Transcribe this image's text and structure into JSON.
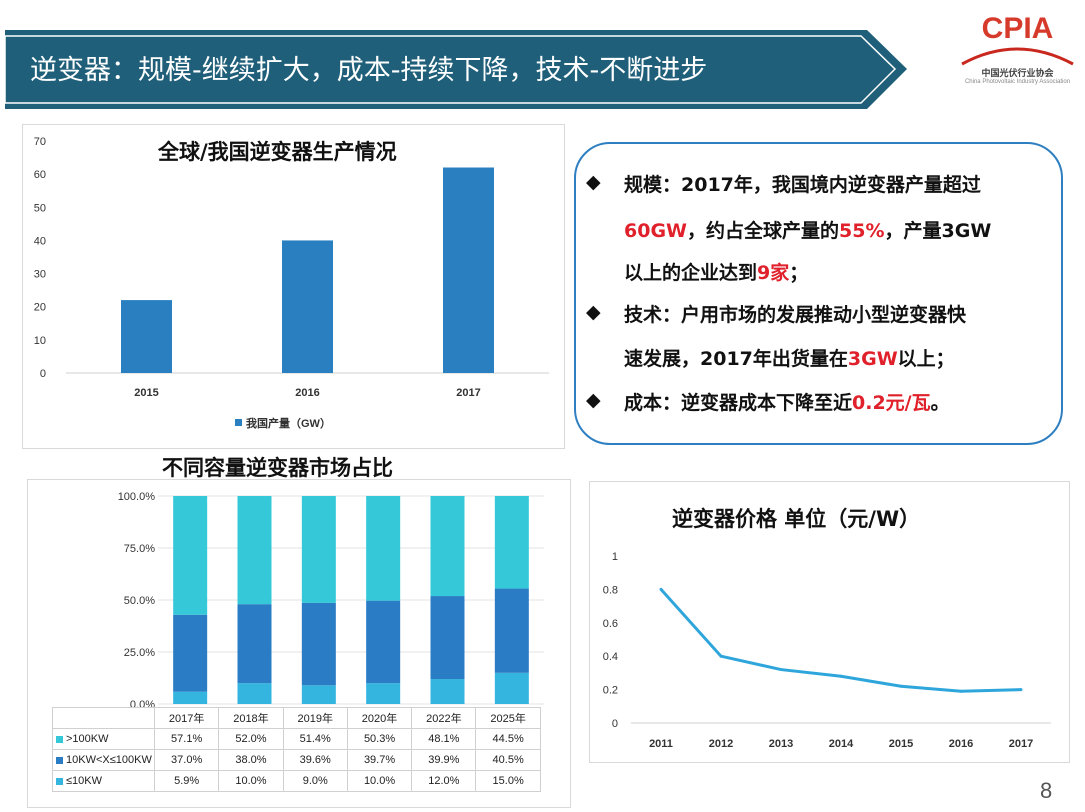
{
  "header": {
    "title": "逆变器：规模-继续扩大，成本-持续下降，技术-不断进步",
    "bar_color": "#1f5f7a"
  },
  "logo": {
    "text": "CPIA",
    "subtitle": "中国光伏行业协会",
    "subtitle_en": "China Photovoltaic Industry Association"
  },
  "info": {
    "lines": [
      [
        {
          "t": "规模：2017年，我国境内逆变器产量超过"
        }
      ],
      [
        {
          "t": "60GW",
          "red": true
        },
        {
          "t": "，约占全球产量的"
        },
        {
          "t": "55%",
          "red": true
        },
        {
          "t": "，产量3GW"
        }
      ],
      [
        {
          "t": "以上的企业达到"
        },
        {
          "t": "9家",
          "red": true
        },
        {
          "t": "；"
        }
      ],
      [
        {
          "t": "技术：户用市场的发展推动小型逆变器快"
        }
      ],
      [
        {
          "t": "速发展，2017年出货量在"
        },
        {
          "t": "3GW",
          "red": true
        },
        {
          "t": "以上；"
        }
      ],
      [
        {
          "t": "成本：逆变器成本下降至近"
        },
        {
          "t": "0.2元/瓦",
          "red": true
        },
        {
          "t": "。"
        }
      ]
    ],
    "bullet_lines": [
      0,
      3,
      5
    ]
  },
  "page_number": "8",
  "chart_data": [
    {
      "type": "bar",
      "title": "全球/我国逆变器生产情况",
      "categories": [
        "2015",
        "2016",
        "2017"
      ],
      "series": [
        {
          "name": "我国产量（GW）",
          "values": [
            22,
            40,
            62
          ],
          "color": "#2a7fc1"
        }
      ],
      "ylim": [
        0,
        70
      ],
      "yticks": [
        0,
        10,
        20,
        30,
        40,
        50,
        60,
        70
      ],
      "legend": "bottom"
    },
    {
      "type": "bar",
      "stacked": true,
      "title": "不同容量逆变器市场占比",
      "categories": [
        "2017年",
        "2018年",
        "2019年",
        "2020年",
        "2022年",
        "2025年"
      ],
      "series": [
        {
          "name": "≤10KW",
          "values": [
            5.9,
            10.0,
            9.0,
            10.0,
            12.0,
            15.0
          ],
          "color": "#33b5e0",
          "labels": [
            "5.9%",
            "10.0%",
            "9.0%",
            "10.0%",
            "12.0%",
            "15.0%"
          ]
        },
        {
          "name": "10KW<X≤100KW",
          "values": [
            37.0,
            38.0,
            39.6,
            39.7,
            39.9,
            40.5
          ],
          "color": "#2a7dc4",
          "labels": [
            "37.0%",
            "38.0%",
            "39.6%",
            "39.7%",
            "39.9%",
            "40.5%"
          ]
        },
        {
          "name": ">100KW",
          "values": [
            57.1,
            52.0,
            51.4,
            50.3,
            48.1,
            44.5
          ],
          "color": "#35c8d9",
          "labels": [
            "57.1%",
            "52.0%",
            "51.4%",
            "50.3%",
            "48.1%",
            "44.5%"
          ]
        }
      ],
      "table_order": [
        2,
        1,
        0
      ],
      "ylim": [
        0,
        100
      ],
      "yticks": [
        "0.0%",
        "25.0%",
        "50.0%",
        "75.0%",
        "100.0%"
      ],
      "legend": "data-table"
    },
    {
      "type": "line",
      "title": "逆变器价格 单位（元/W）",
      "x": [
        "2011",
        "2012",
        "2013",
        "2014",
        "2015",
        "2016",
        "2017"
      ],
      "series": [
        {
          "values": [
            0.8,
            0.4,
            0.32,
            0.28,
            0.22,
            0.19,
            0.2
          ],
          "color": "#2ea6dc"
        }
      ],
      "ylim": [
        0,
        1
      ],
      "yticks": [
        "0",
        "0.2",
        "0.4",
        "0.6",
        "0.8",
        "1"
      ]
    }
  ]
}
